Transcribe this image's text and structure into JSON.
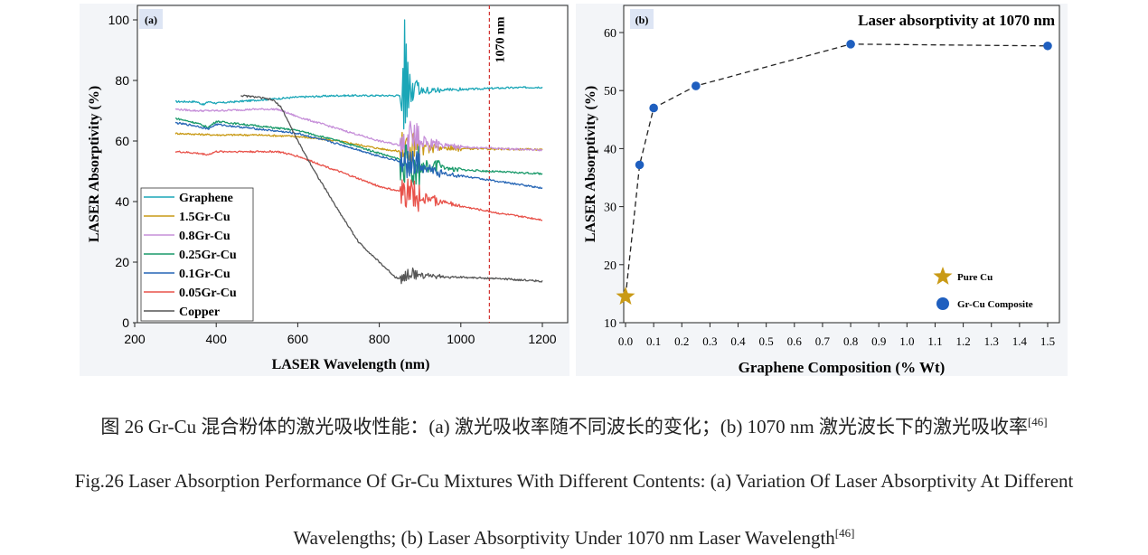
{
  "chart_data": [
    {
      "type": "line",
      "panel_label": "(a)",
      "xlabel": "LASER Wavelength (nm)",
      "ylabel": "LASER Absorptivity (%)",
      "xlim": [
        200,
        1200
      ],
      "ylim": [
        0,
        100
      ],
      "xticks": [
        200,
        400,
        600,
        800,
        1000,
        1200
      ],
      "yticks": [
        0,
        20,
        40,
        60,
        80,
        100
      ],
      "annotation": "1070 nm",
      "annotation_x": 1070,
      "legend_position": "bottom-left",
      "series": [
        {
          "name": "Graphene",
          "color": "#1aa6b7",
          "noise": 1,
          "x": [
            300,
            350,
            370,
            380,
            400,
            500,
            600,
            700,
            800,
            855,
            860,
            870,
            880,
            900,
            1000,
            1100,
            1200
          ],
          "y": [
            73,
            73,
            72,
            73,
            72.5,
            73.5,
            74.5,
            75,
            75,
            75,
            76,
            77,
            76.5,
            76.8,
            77,
            77.5,
            77.8
          ]
        },
        {
          "name": "1.5Gr-Cu",
          "color": "#c99a16",
          "noise": 2,
          "x": [
            300,
            400,
            500,
            600,
            700,
            800,
            855,
            860,
            880,
            900,
            1000,
            1100,
            1200
          ],
          "y": [
            62.5,
            62,
            62,
            61.5,
            60,
            57.5,
            56.5,
            58,
            58,
            57.8,
            57.5,
            57.3,
            57.2
          ]
        },
        {
          "name": "0.8Gr-Cu",
          "color": "#c68fd9",
          "noise": 2,
          "x": [
            300,
            350,
            400,
            500,
            550,
            600,
            700,
            800,
            855,
            860,
            880,
            900,
            1000,
            1100,
            1200
          ],
          "y": [
            70.5,
            70,
            70,
            70.5,
            70.5,
            68,
            64,
            60,
            58.5,
            60,
            59.5,
            59,
            58,
            57.5,
            57
          ]
        },
        {
          "name": "0.25Gr-Cu",
          "color": "#1a9a6a",
          "noise": 2,
          "x": [
            300,
            350,
            380,
            400,
            500,
            600,
            700,
            800,
            860,
            880,
            900,
            1000,
            1100,
            1200
          ],
          "y": [
            67.5,
            66,
            64.5,
            66.5,
            65,
            63.5,
            60,
            56,
            53.5,
            52.5,
            52,
            50.5,
            49.8,
            49.2
          ]
        },
        {
          "name": "0.1Gr-Cu",
          "color": "#2565b5",
          "noise": 1.5,
          "x": [
            300,
            350,
            380,
            400,
            500,
            600,
            700,
            800,
            860,
            900,
            1000,
            1100,
            1200
          ],
          "y": [
            66,
            65,
            64,
            65.5,
            64,
            62.5,
            59,
            55,
            53,
            51,
            48.5,
            46.5,
            44.5
          ]
        },
        {
          "name": "0.05Gr-Cu",
          "color": "#e8524a",
          "noise": 1.5,
          "x": [
            300,
            350,
            380,
            400,
            500,
            550,
            600,
            700,
            800,
            860,
            900,
            1000,
            1100,
            1200
          ],
          "y": [
            56.5,
            56,
            55.5,
            56.5,
            56.5,
            56.5,
            55,
            50,
            45,
            43,
            41.5,
            38.5,
            36,
            34
          ]
        },
        {
          "name": "Copper",
          "color": "#555555",
          "noise": 0.6,
          "x": [
            460,
            500,
            540,
            560,
            600,
            650,
            700,
            750,
            800,
            840,
            860,
            870,
            900,
            1000,
            1100,
            1200
          ],
          "y": [
            75,
            74.5,
            73.5,
            71,
            60,
            48,
            37,
            26.5,
            20,
            15,
            14.5,
            16,
            15.5,
            15,
            14.5,
            13.7
          ]
        }
      ]
    },
    {
      "type": "scatter",
      "panel_label": "(b)",
      "title": "Laser absorptivity at 1070 nm",
      "xlabel": "Graphene Composition (% Wt)",
      "ylabel": "LASER Absorptivity (%)",
      "xlim": [
        0.0,
        1.5
      ],
      "ylim": [
        10,
        60
      ],
      "xticks": [
        "0.0",
        "0.1",
        "0.2",
        "0.3",
        "0.4",
        "0.5",
        "0.6",
        "0.7",
        "0.8",
        "0.9",
        "1.0",
        "1.1",
        "1.2",
        "1.3",
        "1.4",
        "1.5"
      ],
      "yticks": [
        10,
        20,
        30,
        40,
        50,
        60
      ],
      "legend_position": "bottom-right",
      "series": [
        {
          "name": "Pure Cu",
          "marker": "star",
          "color": "#c99a16",
          "x": [
            0.0
          ],
          "y": [
            14.5
          ]
        },
        {
          "name": "Gr-Cu Composite",
          "marker": "circle",
          "color": "#1f5fbf",
          "x": [
            0.05,
            0.1,
            0.25,
            0.8,
            1.5
          ],
          "y": [
            37.2,
            47,
            50.8,
            58,
            57.7
          ]
        }
      ],
      "trend_line": {
        "style": "dashed",
        "x": [
          0.0,
          0.05,
          0.1,
          0.25,
          0.8,
          1.5
        ],
        "y": [
          14.5,
          37.2,
          47,
          50.8,
          58,
          57.7
        ]
      }
    }
  ],
  "caption": {
    "zh": "图 26 Gr-Cu  混合粉体的激光吸收性能：(a)  激光吸收率随不同波长的变化；(b) 1070 nm 激光波长下的激光吸收率",
    "zh_ref": "[46]",
    "en_line1": "Fig.26 Laser Absorption Performance Of Gr-Cu Mixtures With Different Contents: (a) Variation Of Laser Absorptivity At Different",
    "en_line2": "Wavelengths; (b) Laser Absorptivity Under 1070 nm Laser Wavelength",
    "en_ref": "[46]"
  }
}
